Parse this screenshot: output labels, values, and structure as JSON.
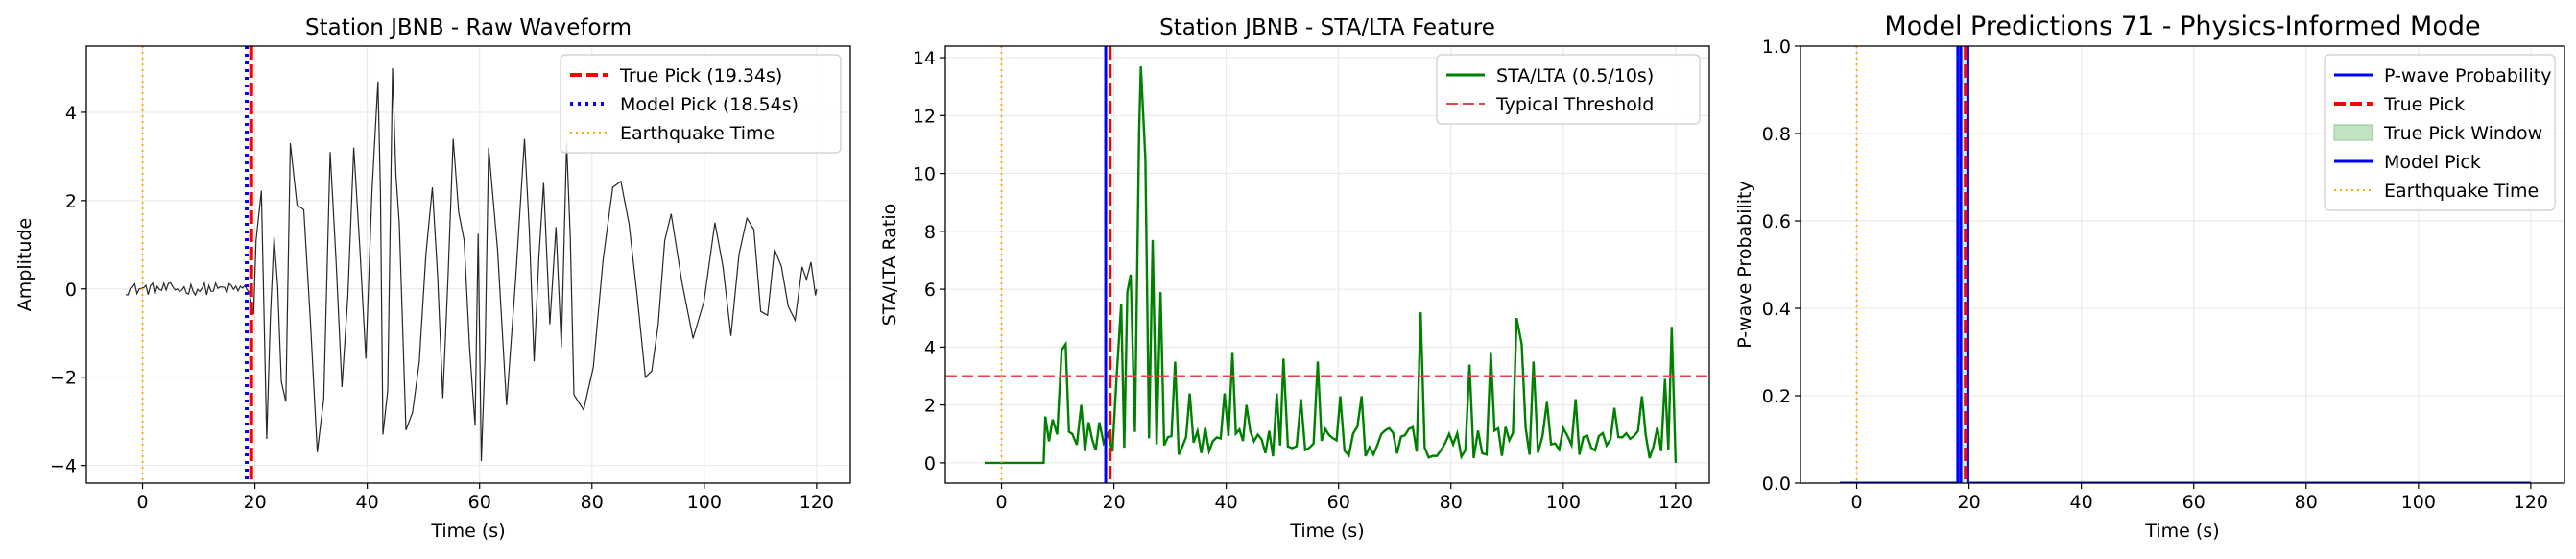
{
  "chart_data": [
    {
      "type": "line",
      "title": "Station JBNB - Raw Waveform",
      "xlabel": "Time (s)",
      "ylabel": "Amplitude",
      "xlim": [
        -10,
        126
      ],
      "ylim": [
        -4.4,
        5.5
      ],
      "xticks": [
        0,
        20,
        40,
        60,
        80,
        100,
        120
      ],
      "yticks": [
        -4,
        -2,
        0,
        2,
        4
      ],
      "xtick_labels": [
        "0",
        "20",
        "40",
        "60",
        "80",
        "100",
        "120"
      ],
      "ytick_labels": [
        "−4",
        "−2",
        "0",
        "2",
        "4"
      ],
      "grid": true,
      "legend_position": "top-right",
      "series": [
        {
          "name": "",
          "color": "#000000",
          "style": "solid",
          "kind": "waveform",
          "x_start": -3,
          "x_end": 120,
          "pick": 19.34,
          "peaks": [
            [
              20.2,
              1.1
            ],
            [
              22.1,
              -3.4
            ],
            [
              24.7,
              -2.1
            ],
            [
              26.3,
              3.3
            ],
            [
              31.1,
              -3.7
            ],
            [
              33.4,
              3.1
            ],
            [
              37.6,
              3.2
            ],
            [
              41.9,
              4.7
            ],
            [
              42.8,
              -3.3
            ],
            [
              44.5,
              5.0
            ],
            [
              46.9,
              -3.2
            ],
            [
              51.6,
              2.3
            ],
            [
              55.3,
              3.4
            ],
            [
              59.2,
              -3.1
            ],
            [
              60.3,
              -3.9
            ],
            [
              61.6,
              3.2
            ],
            [
              68.0,
              3.4
            ],
            [
              71.4,
              2.4
            ],
            [
              73.6,
              1.4
            ],
            [
              75.5,
              3.3
            ],
            [
              76.8,
              -2.4
            ],
            [
              83.7,
              2.3
            ],
            [
              89.5,
              -2.0
            ],
            [
              94.1,
              1.7
            ],
            [
              101.9,
              1.5
            ],
            [
              107.6,
              1.6
            ],
            [
              112.5,
              0.9
            ],
            [
              117.4,
              0.5
            ]
          ]
        }
      ],
      "vlines": [
        {
          "name": "True Pick (19.34s)",
          "x": 19.34,
          "color": "#ff0000",
          "style": "dashed"
        },
        {
          "name": "Model Pick (18.54s)",
          "x": 18.54,
          "color": "#0000ff",
          "style": "dotted"
        },
        {
          "name": "Earthquake Time",
          "x": 0,
          "color": "#ffa500",
          "style": "dotted"
        }
      ]
    },
    {
      "type": "line",
      "title": "Station JBNB - STA/LTA Feature",
      "xlabel": "Time (s)",
      "ylabel": "STA/LTA Ratio",
      "xlim": [
        -10,
        126
      ],
      "ylim": [
        -0.7,
        14.4
      ],
      "xticks": [
        0,
        20,
        40,
        60,
        80,
        100,
        120
      ],
      "yticks": [
        0,
        2,
        4,
        6,
        8,
        10,
        12,
        14
      ],
      "xtick_labels": [
        "0",
        "20",
        "40",
        "60",
        "80",
        "100",
        "120"
      ],
      "ytick_labels": [
        "0",
        "2",
        "4",
        "6",
        "8",
        "10",
        "12",
        "14"
      ],
      "grid": true,
      "legend_position": "top-right",
      "series": [
        {
          "name": "STA/LTA (0.5/10s)",
          "color": "#008000",
          "style": "solid",
          "kind": "stalta",
          "x_start": -3,
          "x_end": 120,
          "zero_until": 7.5,
          "peaks": [
            [
              7.8,
              1.6
            ],
            [
              9.1,
              1.5
            ],
            [
              10.7,
              3.9
            ],
            [
              11.4,
              4.1
            ],
            [
              12.6,
              1.0
            ],
            [
              14.2,
              2.0
            ],
            [
              15.5,
              1.4
            ],
            [
              17.4,
              1.4
            ],
            [
              20.5,
              3.0
            ],
            [
              21.3,
              5.5
            ],
            [
              22.4,
              5.9
            ],
            [
              23.0,
              6.5
            ],
            [
              24.5,
              11.5
            ],
            [
              24.8,
              13.7
            ],
            [
              25.6,
              10.5
            ],
            [
              26.9,
              7.7
            ],
            [
              28.3,
              5.9
            ],
            [
              30.9,
              3.5
            ],
            [
              33.5,
              2.4
            ],
            [
              39.7,
              2.4
            ],
            [
              41.1,
              3.8
            ],
            [
              43.6,
              2.0
            ],
            [
              49.0,
              2.4
            ],
            [
              50.2,
              3.6
            ],
            [
              53.3,
              2.2
            ],
            [
              56.3,
              3.5
            ],
            [
              60.3,
              2.3
            ],
            [
              64.1,
              2.3
            ],
            [
              74.6,
              5.2
            ],
            [
              83.3,
              3.4
            ],
            [
              87.1,
              3.8
            ],
            [
              91.7,
              5.0
            ],
            [
              92.6,
              4.1
            ],
            [
              94.7,
              3.5
            ],
            [
              97.1,
              2.1
            ],
            [
              102.2,
              2.2
            ],
            [
              109.1,
              1.9
            ],
            [
              114.0,
              2.3
            ],
            [
              118.1,
              2.9
            ],
            [
              119.3,
              4.7
            ]
          ]
        },
        {
          "name": "Typical Threshold",
          "color": "#e8454a",
          "style": "dashed",
          "kind": "hline",
          "y": 3
        }
      ],
      "vlines": [
        {
          "name": "",
          "x": 0,
          "color": "#ffa500",
          "style": "dotted"
        },
        {
          "name": "",
          "x": 18.54,
          "color": "#0000ff",
          "style": "solid"
        },
        {
          "name": "",
          "x": 19.34,
          "color": "#ff0000",
          "style": "dashed"
        }
      ]
    },
    {
      "type": "line",
      "title": "Model Predictions 71 - Physics-Informed Mode",
      "xlabel": "Time (s)",
      "ylabel": "P-wave Probability",
      "xlim": [
        -10,
        126
      ],
      "ylim": [
        0,
        1
      ],
      "xticks": [
        0,
        20,
        40,
        60,
        80,
        100,
        120
      ],
      "yticks": [
        0,
        0.2,
        0.4,
        0.6,
        0.8,
        1.0
      ],
      "xtick_labels": [
        "0",
        "20",
        "40",
        "60",
        "80",
        "100",
        "120"
      ],
      "ytick_labels": [
        "0.0",
        "0.2",
        "0.4",
        "0.6",
        "0.8",
        "1.0"
      ],
      "grid": true,
      "legend_position": "top-right",
      "series": [
        {
          "name": "P-wave Probability",
          "color": "#0000ff",
          "style": "solid",
          "kind": "prob",
          "x_start": -3,
          "x_end": 120,
          "spike_from": 18.0,
          "spike_to": 19.8
        },
        {
          "name": "True Pick",
          "color": "#ff0000",
          "style": "dashed",
          "kind": "legend-only"
        },
        {
          "name": "True Pick Window",
          "color": "#c3e4c3",
          "style": "fill",
          "kind": "legend-only"
        },
        {
          "name": "Model Pick",
          "color": "#0000ff",
          "style": "solid",
          "kind": "legend-only"
        },
        {
          "name": "Earthquake Time",
          "color": "#ffa500",
          "style": "dotted",
          "kind": "legend-only"
        }
      ],
      "vlines": [
        {
          "name": "",
          "x": 0,
          "color": "#ffa500",
          "style": "dotted"
        },
        {
          "name": "",
          "x": 18.54,
          "color": "#0000ff",
          "style": "solid"
        },
        {
          "name": "",
          "x": 19.34,
          "color": "#ff0000",
          "style": "dashed"
        }
      ]
    }
  ]
}
